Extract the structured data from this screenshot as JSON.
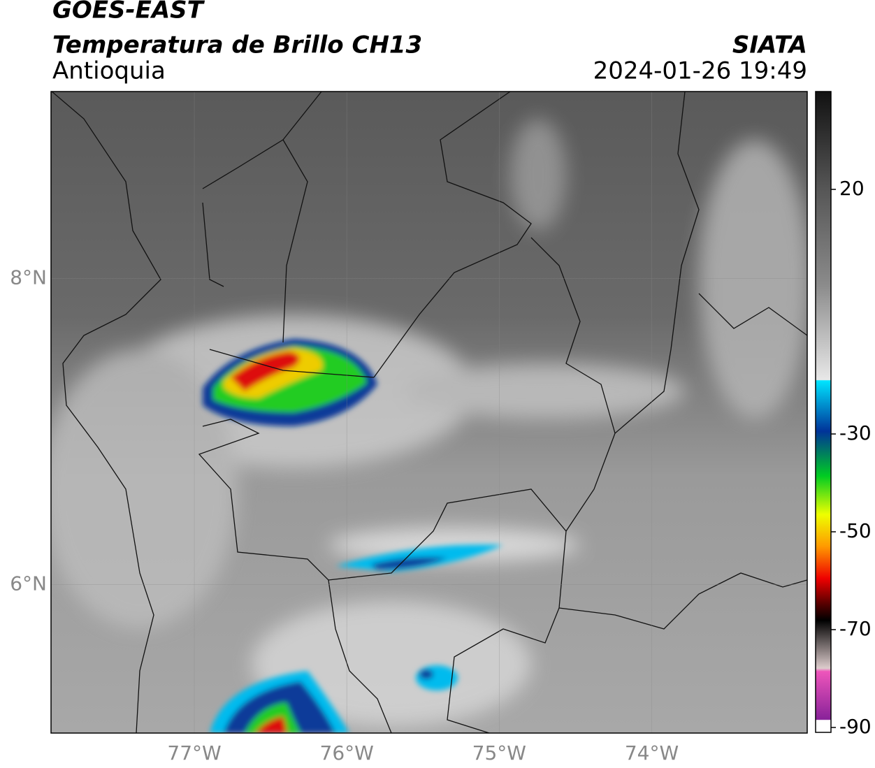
{
  "header": {
    "title": "GOES-EAST",
    "subtitle": "Temperatura de Brillo CH13",
    "region": "Antioquia",
    "source": "SIATA",
    "datetime": "2024-01-26 19:49"
  },
  "map": {
    "xlim": [
      -77.94,
      -72.98
    ],
    "ylim": [
      5.03,
      9.22
    ],
    "xticks": [
      {
        "value": -77,
        "label": "77°W"
      },
      {
        "value": -76,
        "label": "76°W"
      },
      {
        "value": -75,
        "label": "75°W"
      },
      {
        "value": -74,
        "label": "74°W"
      }
    ],
    "yticks": [
      {
        "value": 8,
        "label": "8°N"
      },
      {
        "value": 6,
        "label": "6°N"
      }
    ]
  },
  "colorbar": {
    "lim": [
      -91,
      40
    ],
    "ticks": [
      20,
      -30,
      -50,
      -70,
      -90
    ]
  }
}
